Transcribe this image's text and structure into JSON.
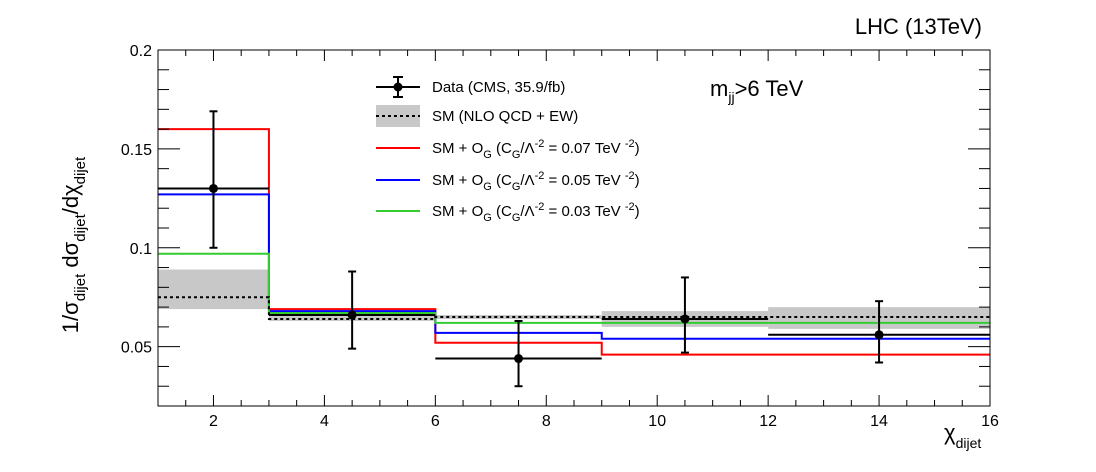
{
  "chart_data": {
    "type": "histogram",
    "title": "LHC (13TeV)",
    "annotation": {
      "base": "m",
      "sub": "jj",
      "rest": ">6 TeV"
    },
    "xlabel": {
      "base": "χ",
      "sub": "dijet"
    },
    "ylabel": {
      "p1": "1/σ",
      "s1": "dijet",
      "p2": " dσ",
      "s2": "dijet",
      "p3": "/dχ",
      "s3": "dijet"
    },
    "xlim": [
      1,
      16
    ],
    "ylim": [
      0.02,
      0.2
    ],
    "xticks": [
      2,
      4,
      6,
      8,
      10,
      12,
      14,
      16
    ],
    "yticks": [
      0.05,
      0.1,
      0.15,
      0.2
    ],
    "ytick_labels": [
      "0.05",
      "0.1",
      "0.15",
      "0.2"
    ],
    "bin_edges": [
      1,
      3,
      6,
      9,
      12,
      16
    ],
    "data": {
      "label": "Data (CMS, 35.9/fb)",
      "x": [
        2,
        4.5,
        7.5,
        10.5,
        14
      ],
      "y": [
        0.13,
        0.066,
        0.044,
        0.064,
        0.056
      ],
      "yerr_low": [
        0.03,
        0.017,
        0.014,
        0.017,
        0.014
      ],
      "yerr_high": [
        0.039,
        0.022,
        0.019,
        0.021,
        0.017
      ],
      "color": "#000000"
    },
    "sm": {
      "label": "SM (NLO QCD + EW)",
      "values": [
        0.075,
        0.064,
        0.065,
        0.065,
        0.065
      ],
      "band_low": [
        0.069,
        0.063,
        0.064,
        0.06,
        0.059
      ],
      "band_high": [
        0.089,
        0.066,
        0.066,
        0.068,
        0.07
      ],
      "color": "#000000",
      "band_color": "#c8c8c8"
    },
    "series": [
      {
        "label_pre": "SM + O",
        "label_sub1": "G",
        "label_mid": " (C",
        "label_sub2": "G",
        "label_sup1": "/Λ",
        "label_sup2": "-2",
        "label_val": " = 0.07 TeV ",
        "label_sup3": "-2",
        "label_end": ")",
        "values": [
          0.16,
          0.069,
          0.052,
          0.046,
          0.046
        ],
        "color": "#ff0000"
      },
      {
        "label_pre": "SM + O",
        "label_sub1": "G",
        "label_mid": " (C",
        "label_sub2": "G",
        "label_sup1": "/Λ",
        "label_sup2": "-2",
        "label_val": " = 0.05 TeV ",
        "label_sup3": "-2",
        "label_end": ")",
        "values": [
          0.127,
          0.068,
          0.057,
          0.054,
          0.054
        ],
        "color": "#0000ff"
      },
      {
        "label_pre": "SM + O",
        "label_sub1": "G",
        "label_mid": " (C",
        "label_sub2": "G",
        "label_sup1": "/Λ",
        "label_sup2": "-2",
        "label_val": " = 0.03 TeV ",
        "label_sup3": "-2",
        "label_end": ")",
        "values": [
          0.097,
          0.067,
          0.062,
          0.062,
          0.062
        ],
        "color": "#33cc33"
      }
    ]
  }
}
